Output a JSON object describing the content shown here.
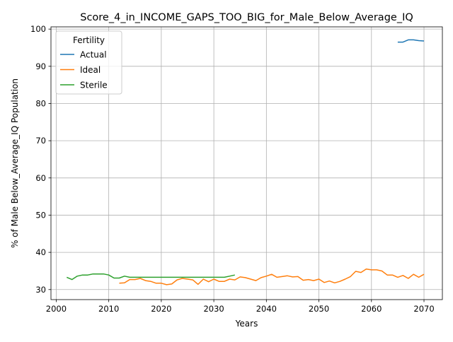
{
  "chart_data": {
    "type": "line",
    "title": "Score_4_in_INCOME_GAPS_TOO_BIG_for_Male_Below_Average_IQ",
    "xlabel": "Years",
    "ylabel": "% of Male Below_Average_IQ Population",
    "xlim": [
      1999,
      2073.5
    ],
    "ylim": [
      27.3,
      100.6
    ],
    "xticks": [
      2000,
      2010,
      2020,
      2030,
      2040,
      2050,
      2060,
      2070
    ],
    "yticks": [
      30,
      40,
      50,
      60,
      70,
      80,
      90,
      100
    ],
    "grid": true,
    "legend": {
      "title": "Fertility",
      "placement": "top-left"
    },
    "series": [
      {
        "name": "Actual",
        "color": "#1f77b4",
        "x": [
          2065,
          2066,
          2067,
          2068,
          2069,
          2070
        ],
        "y": [
          96.5,
          96.5,
          97.1,
          97.1,
          96.9,
          96.8
        ]
      },
      {
        "name": "Ideal",
        "color": "#ff7f0e",
        "x": [
          2012,
          2013,
          2014,
          2015,
          2016,
          2017,
          2018,
          2019,
          2020,
          2021,
          2022,
          2023,
          2024,
          2025,
          2026,
          2027,
          2028,
          2029,
          2030,
          2031,
          2032,
          2033,
          2034,
          2035,
          2036,
          2037,
          2038,
          2039,
          2040,
          2041,
          2042,
          2043,
          2044,
          2045,
          2046,
          2047,
          2048,
          2049,
          2050,
          2051,
          2052,
          2053,
          2054,
          2055,
          2056,
          2057,
          2058,
          2059,
          2060,
          2061,
          2062,
          2063,
          2064,
          2065,
          2066,
          2067,
          2068,
          2069,
          2070
        ],
        "y": [
          31.7,
          31.8,
          32.7,
          32.7,
          33.0,
          32.4,
          32.2,
          31.7,
          31.7,
          31.3,
          31.5,
          32.6,
          33.0,
          32.8,
          32.6,
          31.4,
          32.8,
          32.1,
          32.8,
          32.2,
          32.2,
          32.8,
          32.6,
          33.4,
          33.2,
          32.8,
          32.4,
          33.2,
          33.6,
          34.1,
          33.3,
          33.5,
          33.7,
          33.4,
          33.5,
          32.5,
          32.7,
          32.4,
          32.8,
          31.9,
          32.3,
          31.8,
          32.2,
          32.8,
          33.5,
          34.9,
          34.6,
          35.5,
          35.3,
          35.3,
          35.0,
          33.9,
          33.9,
          33.3,
          33.8,
          33.0,
          34.1,
          33.3,
          34.1
        ]
      },
      {
        "name": "Sterile",
        "color": "#2ca02c",
        "x": [
          2002,
          2003,
          2004,
          2005,
          2006,
          2007,
          2008,
          2009,
          2010,
          2011,
          2012,
          2013,
          2014,
          2015,
          2016,
          2017,
          2018,
          2019,
          2020,
          2021,
          2022,
          2023,
          2024,
          2025,
          2026,
          2027,
          2028,
          2029,
          2030,
          2031,
          2032,
          2033,
          2034
        ],
        "y": [
          33.3,
          32.7,
          33.6,
          33.9,
          33.9,
          34.2,
          34.2,
          34.2,
          33.9,
          33.1,
          33.1,
          33.6,
          33.3,
          33.3,
          33.3,
          33.3,
          33.3,
          33.3,
          33.3,
          33.3,
          33.3,
          33.3,
          33.3,
          33.3,
          33.3,
          33.3,
          33.3,
          33.3,
          33.3,
          33.3,
          33.3,
          33.6,
          33.9
        ]
      }
    ]
  }
}
